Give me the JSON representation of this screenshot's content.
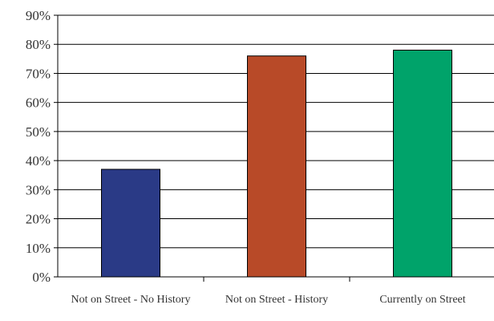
{
  "chart_data": {
    "type": "bar",
    "categories": [
      "Not on Street - No History",
      "Not on Street - History",
      "Currently on Street"
    ],
    "values": [
      37,
      76,
      78
    ],
    "colors": [
      "#2a3a86",
      "#b84a28",
      "#00a36a"
    ],
    "y_ticks": [
      "0%",
      "10%",
      "20%",
      "30%",
      "40%",
      "50%",
      "60%",
      "70%",
      "80%",
      "90%"
    ],
    "ylim": [
      0,
      90
    ],
    "grid": true,
    "legend": "none"
  }
}
